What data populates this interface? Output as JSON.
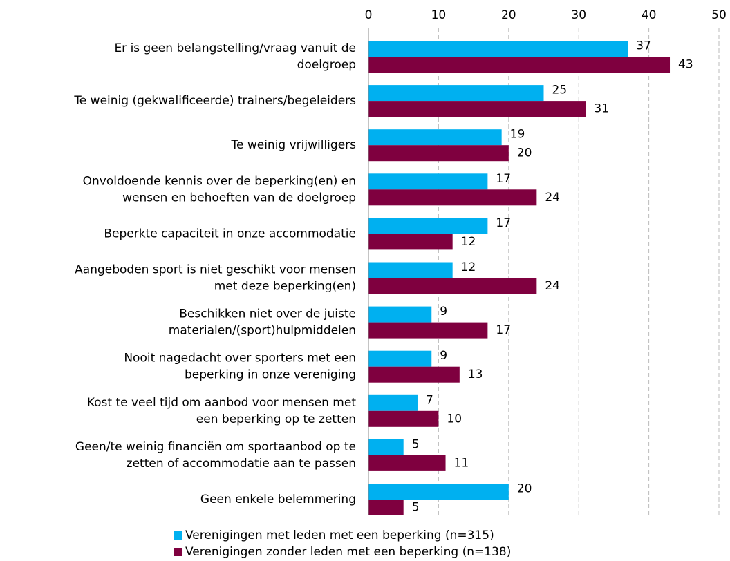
{
  "chart_data": {
    "type": "barh",
    "categories": [
      [
        "Er is geen belangstelling/vraag vanuit de",
        "doelgroep"
      ],
      [
        "Te weinig (gekwalificeerde) trainers/begeleiders"
      ],
      [
        "Te weinig vrijwilligers"
      ],
      [
        "Onvoldoende kennis over de beperking(en) en",
        "wensen en behoeften van de doelgroep"
      ],
      [
        "Beperkte capaciteit in onze accommodatie"
      ],
      [
        "Aangeboden sport is niet geschikt voor mensen",
        "met deze beperking(en)"
      ],
      [
        "Beschikken niet over de juiste",
        "materialen/(sport)hulpmiddelen"
      ],
      [
        "Nooit nagedacht over sporters met een",
        "beperking in onze vereniging"
      ],
      [
        "Kost te veel tijd om aanbod voor mensen met",
        "een beperking op te zetten"
      ],
      [
        "Geen/te weinig financiën om sportaanbod op te",
        "zetten of accommodatie aan te passen"
      ],
      [
        "Geen enkele belemmering"
      ]
    ],
    "series": [
      {
        "name": "Verenigingen met leden met een beperking (n=315)",
        "color": "#00b0f0",
        "values": [
          37,
          25,
          19,
          17,
          17,
          12,
          9,
          9,
          7,
          5,
          20
        ]
      },
      {
        "name": "Verenigingen zonder leden met een beperking (n=138)",
        "color": "#7f003f",
        "values": [
          43,
          31,
          20,
          24,
          12,
          24,
          17,
          13,
          10,
          11,
          5
        ]
      }
    ],
    "xlim": [
      0,
      50
    ],
    "xticks": [
      0,
      10,
      20,
      30,
      40,
      50
    ],
    "grid": true
  }
}
